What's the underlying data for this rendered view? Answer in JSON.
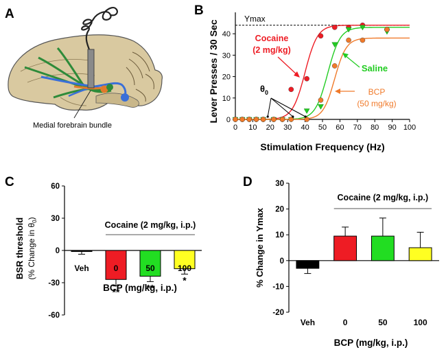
{
  "chart_data": [
    {
      "panel": "A",
      "type": "diagram",
      "annotation": "Medial forebrain bundle"
    },
    {
      "panel": "B",
      "type": "line",
      "xlabel": "Stimulation Frequency (Hz)",
      "ylabel": "Lever Presses / 30 Sec",
      "xlim": [
        0,
        100
      ],
      "ylim": [
        0,
        50
      ],
      "xticks": [
        0,
        10,
        20,
        30,
        40,
        50,
        60,
        70,
        80,
        90,
        100
      ],
      "yticks": [
        0,
        10,
        20,
        30,
        40
      ],
      "ymax_label": "Ymax",
      "ymax_value": 44,
      "theta_label": "θ",
      "theta_sub": "0",
      "series": [
        {
          "name": "Cocaine (2 mg/kg)",
          "label_line1": "Cocaine",
          "label_line2": "(2 mg/kg)",
          "color": "#ee1c24",
          "marker": "circle",
          "x": [
            0,
            4,
            8,
            12,
            16,
            22,
            27,
            32,
            41,
            49,
            57,
            65,
            73,
            87
          ],
          "y": [
            0,
            0,
            0,
            0,
            0,
            0,
            0,
            14,
            19,
            39,
            43,
            43,
            44,
            42
          ],
          "fit": {
            "top": 44,
            "x50": 40,
            "slope": 0.28
          }
        },
        {
          "name": "Saline",
          "label_line1": "Saline",
          "color": "#22cc22",
          "marker": "triangle",
          "x": [
            0,
            4,
            8,
            12,
            16,
            22,
            27,
            32,
            41,
            49,
            57,
            65,
            73,
            87
          ],
          "y": [
            0,
            0,
            0,
            0,
            0,
            0,
            0,
            0,
            4,
            6,
            35,
            42,
            43,
            41
          ],
          "fit": {
            "top": 43,
            "x50": 53,
            "slope": 0.28
          }
        },
        {
          "name": "BCP (50 mg/kg)",
          "label_line1": "BCP",
          "label_line2": "(50 mg/kg)",
          "color": "#f07a2a",
          "marker": "circle",
          "x": [
            0,
            4,
            8,
            12,
            16,
            22,
            27,
            32,
            41,
            49,
            57,
            65,
            73,
            87
          ],
          "y": [
            0,
            0,
            0,
            0,
            0,
            0,
            0,
            0,
            0,
            9,
            25,
            37,
            37,
            42
          ],
          "fit": {
            "top": 38,
            "x50": 57,
            "slope": 0.3
          }
        }
      ]
    },
    {
      "panel": "C",
      "type": "bar",
      "categories": [
        "Veh",
        "0",
        "50",
        "100"
      ],
      "values": [
        -1,
        -27,
        -24,
        -17
      ],
      "errors": [
        2.5,
        6,
        5,
        5
      ],
      "colors": [
        "#000000",
        "#ee1c24",
        "#22dd22",
        "#ffff22"
      ],
      "significance": [
        "",
        "**",
        "**",
        "*"
      ],
      "ylim": [
        -60,
        60
      ],
      "yticks": [
        60,
        30,
        0,
        -30,
        -60
      ],
      "ylabel_line1": "BSR threshold",
      "ylabel_line2_prefix": "(% Change in θ",
      "ylabel_line2_sub": "0",
      "ylabel_line2_suffix": ")",
      "xlabel": "BCP (mg/kg, i.p.)",
      "group_label": "Cocaine (2 mg/kg, i.p.)"
    },
    {
      "panel": "D",
      "type": "bar",
      "categories": [
        "Veh",
        "0",
        "50",
        "100"
      ],
      "values": [
        -3,
        9.5,
        9.5,
        5
      ],
      "errors": [
        2,
        3.5,
        7,
        6
      ],
      "colors": [
        "#000000",
        "#ee1c24",
        "#22dd22",
        "#ffff22"
      ],
      "ylim": [
        -20,
        30
      ],
      "yticks": [
        30,
        20,
        10,
        0,
        -10,
        -20
      ],
      "ylabel": "% Change in Ymax",
      "xlabel": "BCP (mg/kg, i.p.)",
      "group_label": "Cocaine (2 mg/kg, i.p.)"
    }
  ]
}
